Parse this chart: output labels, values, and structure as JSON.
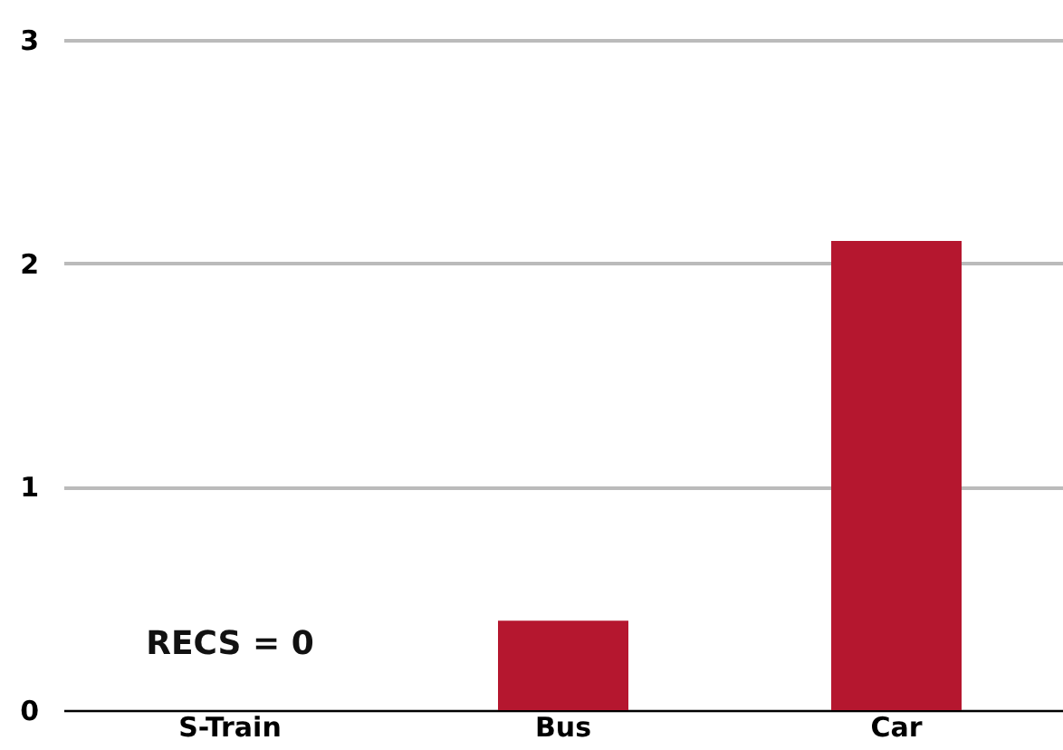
{
  "chart_data": {
    "type": "bar",
    "categories": [
      "S-Train",
      "Bus",
      "Car"
    ],
    "values": [
      0,
      0.4,
      2.1
    ],
    "color": "#b5172f",
    "ylim": [
      0,
      3
    ],
    "yticks": [
      0,
      1,
      2,
      3
    ],
    "grid": "y",
    "annotations": [
      {
        "text": "RECS = 0",
        "x": "S-Train",
        "y": 0
      }
    ]
  }
}
